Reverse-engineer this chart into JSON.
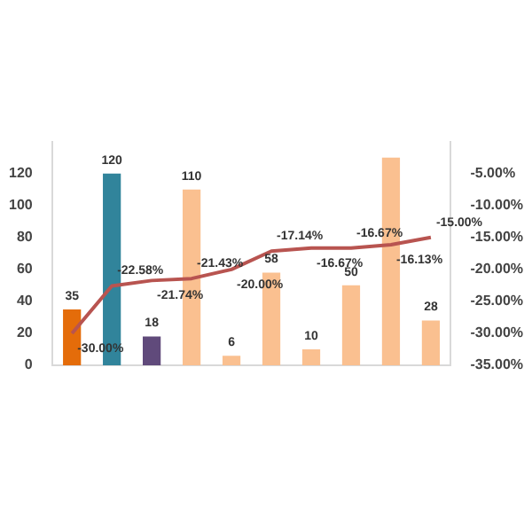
{
  "chart_data": {
    "type": "bar",
    "categories": [
      null,
      null,
      null,
      null,
      null,
      null,
      null,
      null,
      null,
      null
    ],
    "series": [
      {
        "colors": [
          "#e46c0a",
          "#31849b",
          "#604a7b",
          "#fac090",
          "#fac090",
          "#fac090",
          "#fac090",
          "#fac090",
          "#fac090",
          "#fac090"
        ],
        "values": [
          35,
          120,
          18,
          110,
          6,
          58,
          10,
          50,
          130,
          28
        ],
        "value_labels": [
          "35",
          "120",
          "18",
          "110",
          "6",
          "58",
          "10",
          "50",
          null,
          "28"
        ]
      },
      {
        "type": "line",
        "axis": "y2",
        "color": "#b85450",
        "values": [
          -30,
          -22.58,
          -21.74,
          -21.43,
          -20,
          -17.14,
          -16.67,
          -16.67,
          -16.13,
          -15
        ],
        "value_labels": [
          "-30.00%",
          "-22.58%",
          "-21.74%",
          "-21.43%",
          "-20.00%",
          "-17.14%",
          "-16.67%",
          "-16.67%",
          "-16.13%",
          "-15.00%"
        ]
      }
    ],
    "ylim": [
      0,
      140
    ],
    "yticks": [
      0,
      20,
      40,
      60,
      80,
      100,
      120
    ],
    "y2lim": [
      -35,
      0
    ],
    "y2ticks": [
      {
        "value": -5,
        "label": "-5.00%"
      },
      {
        "value": -10,
        "label": "-10.00%"
      },
      {
        "value": -15,
        "label": "-15.00%"
      },
      {
        "value": -20,
        "label": "-20.00%"
      },
      {
        "value": -25,
        "label": "-25.00%"
      },
      {
        "value": -30,
        "label": "-30.00%"
      },
      {
        "value": -35,
        "label": "-35.00%"
      }
    ],
    "grid": false,
    "legend": false,
    "marker": "none"
  }
}
